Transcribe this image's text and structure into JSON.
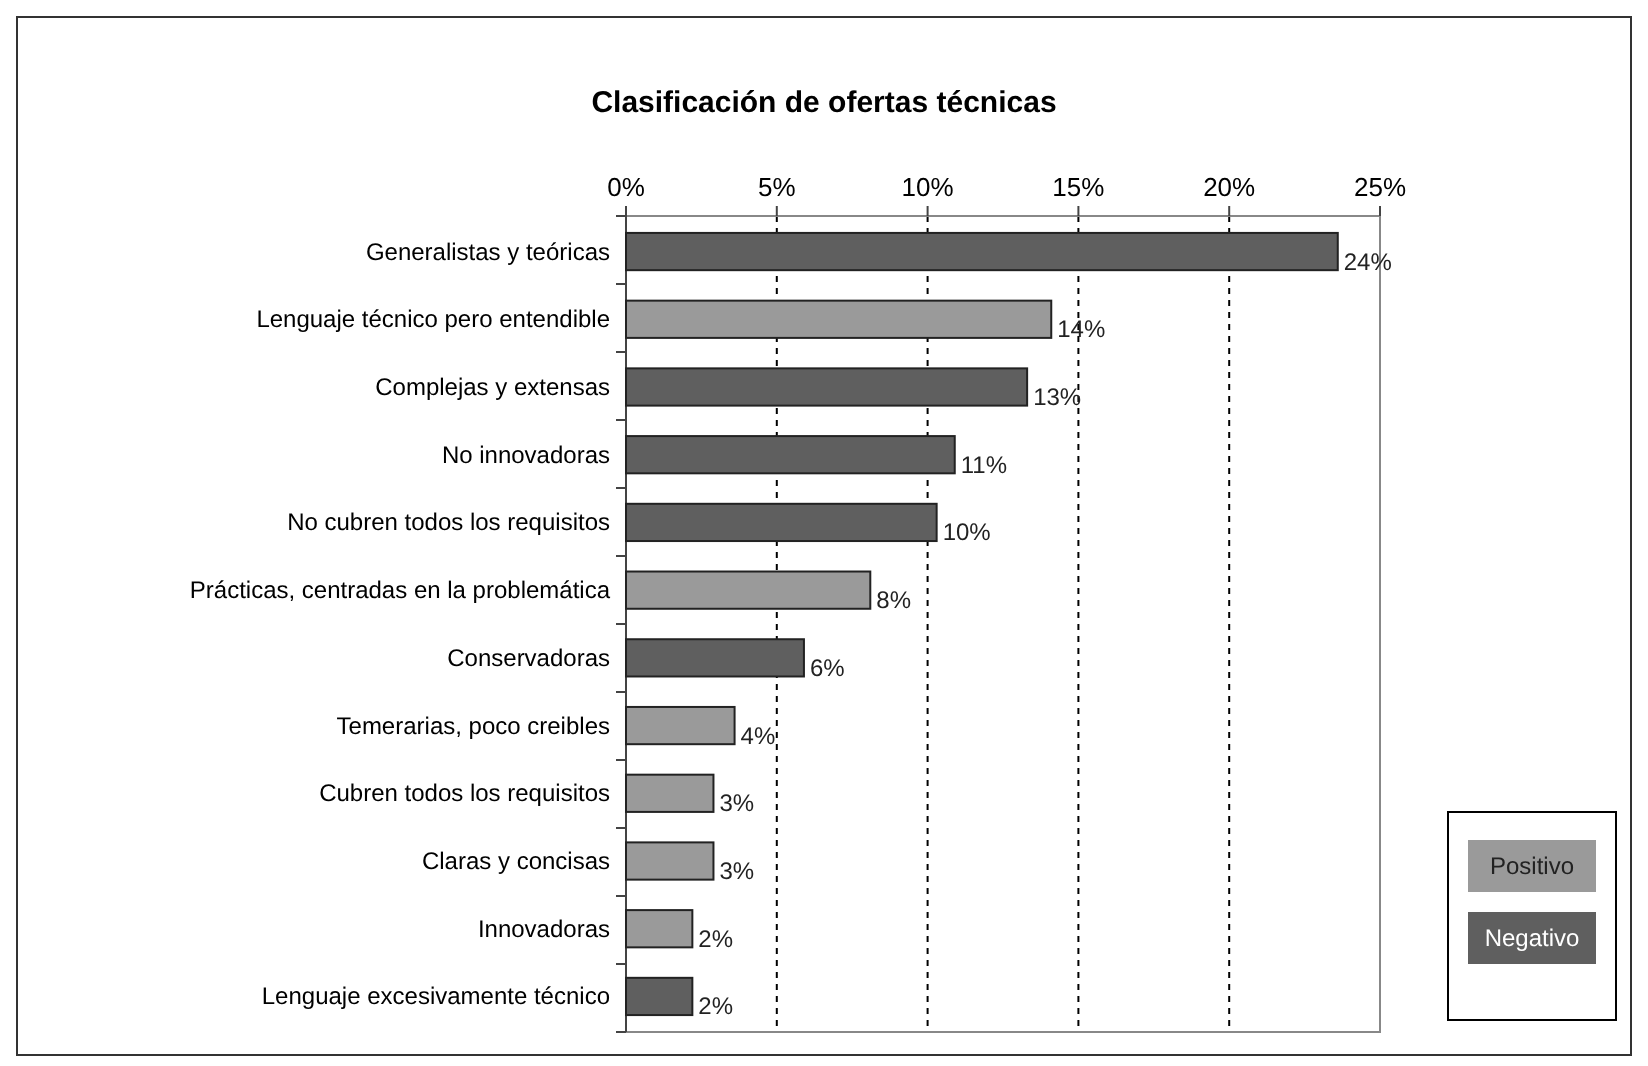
{
  "chart_data": {
    "type": "bar",
    "orientation": "horizontal",
    "stacked": true,
    "title": "Clasificación de ofertas técnicas",
    "categories": [
      "Generalistas y teóricas",
      "Lenguaje técnico pero entendible",
      "Complejas y extensas",
      "No innovadoras",
      "No cubren todos los requisitos",
      "Prácticas, centradas en la problemática",
      "Conservadoras",
      "Temerarias, poco creibles",
      "Cubren todos los requisitos",
      "Claras y concisas",
      "Innovadoras",
      "Lenguaje excesivamente técnico"
    ],
    "series": [
      {
        "name": "Positivo",
        "color": "#9a9a9a",
        "values": [
          null,
          14.1,
          null,
          null,
          null,
          8.1,
          null,
          3.6,
          2.9,
          2.9,
          2.2,
          null
        ],
        "value_labels": [
          null,
          "14%",
          null,
          null,
          null,
          "8%",
          null,
          "4%",
          "3%",
          "3%",
          "2%",
          null
        ]
      },
      {
        "name": "Negativo",
        "color": "#5f5f5f",
        "values": [
          23.6,
          null,
          13.3,
          10.9,
          10.3,
          null,
          5.9,
          null,
          null,
          null,
          null,
          2.2
        ],
        "value_labels": [
          "24%",
          null,
          "13%",
          "11%",
          "10%",
          null,
          "6%",
          null,
          null,
          null,
          null,
          "2%"
        ]
      }
    ],
    "xlim": [
      0,
      25
    ],
    "xticks": [
      {
        "value": 0,
        "label": "0%"
      },
      {
        "value": 5,
        "label": "5%"
      },
      {
        "value": 10,
        "label": "10%"
      },
      {
        "value": 15,
        "label": "15%"
      },
      {
        "value": 20,
        "label": "20%"
      },
      {
        "value": 25,
        "label": "25%"
      }
    ],
    "grid": "x",
    "line_style": "dashed",
    "legend": "right"
  }
}
